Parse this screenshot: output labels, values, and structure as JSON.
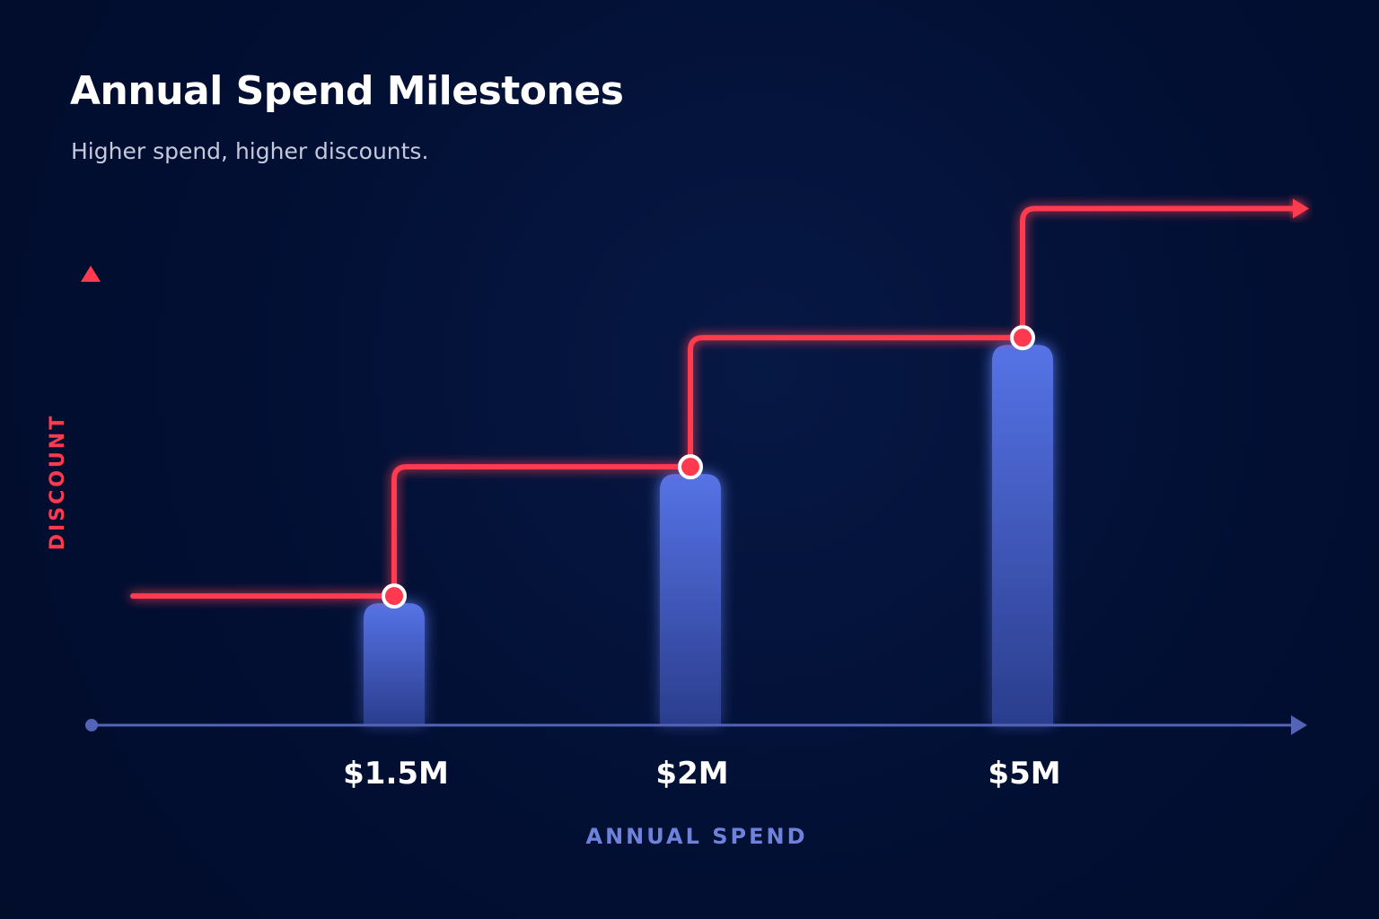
{
  "title": "Annual Spend Milestones",
  "subtitle": "Higher spend, higher discounts.",
  "chart_data": {
    "type": "bar",
    "title": "Annual Spend Milestones",
    "subtitle": "Higher spend, higher discounts.",
    "xlabel": "ANNUAL SPEND",
    "ylabel": "DISCOUNT",
    "categories": [
      "$1.5M",
      "$2M",
      "$5M"
    ],
    "values": [
      1,
      2,
      3
    ],
    "step_line": {
      "levels": [
        1,
        2,
        3,
        4
      ],
      "breakpoints": [
        "$1.5M",
        "$2M",
        "$5M"
      ]
    },
    "ylim": [
      0,
      4.6
    ],
    "grid": false,
    "legend": "none"
  },
  "colors": {
    "background": "#020f33",
    "bar_top": "#5673e6",
    "bar_bottom": "#2a3d8c",
    "step_line": "#ff3a4f",
    "x_axis": "#5263b8",
    "x_axis_title": "#6f82db",
    "y_axis": "#ff3a4f",
    "y_axis_title": "#ff3a4f"
  }
}
